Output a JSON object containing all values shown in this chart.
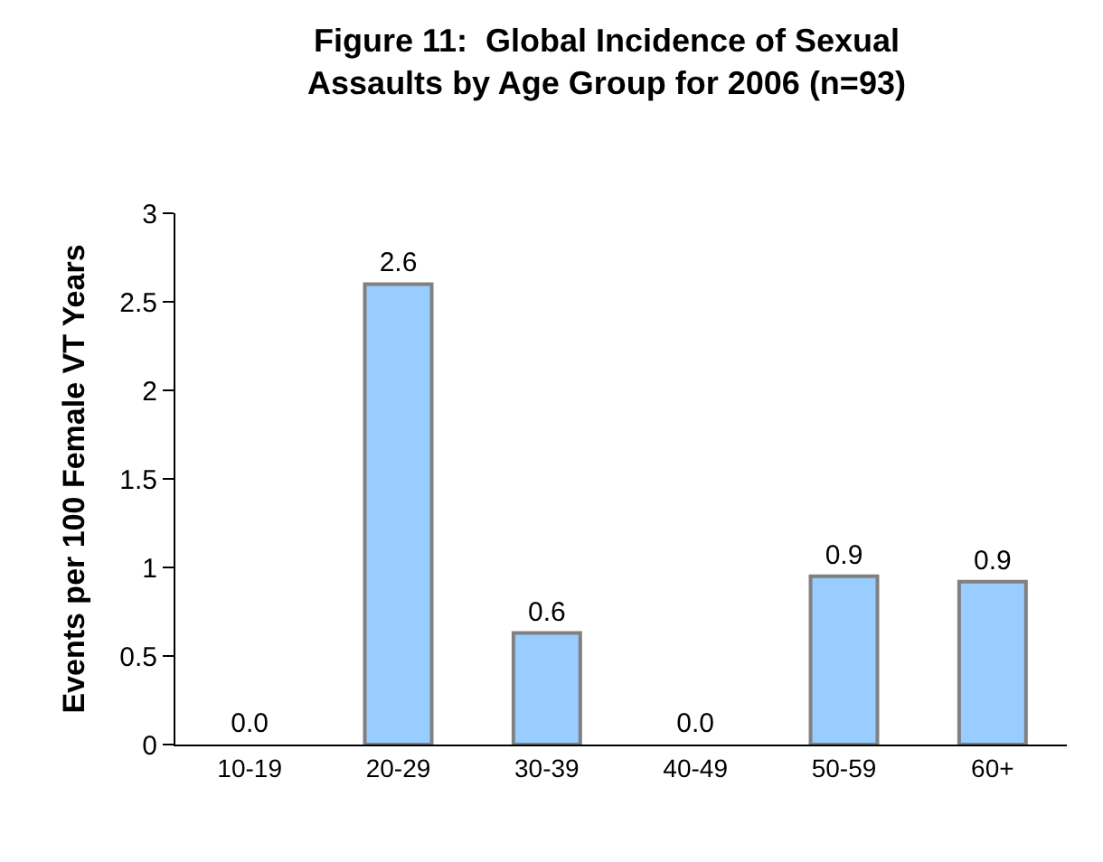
{
  "chart_data": {
    "type": "bar",
    "title": "Figure 11:  Global Incidence of Sexual\nAssaults by Age Group for 2006 (n=93)",
    "ylabel": "Events per 100 Female VT Years",
    "categories": [
      "10-19",
      "20-29",
      "30-39",
      "40-49",
      "50-59",
      "60+"
    ],
    "values": [
      0,
      2.6,
      0.63,
      0,
      0.95,
      0.92
    ],
    "value_labels": [
      "0.0",
      "2.6",
      "0.6",
      "0.0",
      "0.9",
      "0.9"
    ],
    "color": "#99ccff",
    "ylim": [
      0,
      3
    ],
    "yticks": [
      0,
      0.5,
      1,
      1.5,
      2,
      2.5,
      3
    ],
    "legend": false
  }
}
